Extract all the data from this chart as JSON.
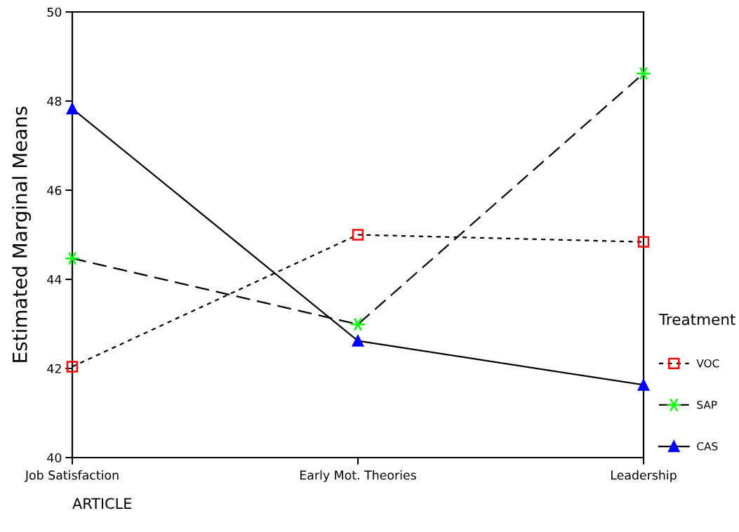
{
  "chart_data": {
    "type": "line",
    "xlabel": "ARTICLE",
    "ylabel": "Estimated Marginal Means",
    "legend_title": "Treatment",
    "categories": [
      "Job Satisfaction",
      "Early Mot. Theories",
      "Leadership"
    ],
    "series": [
      {
        "name": "VOC",
        "color": "#ff0000",
        "values": [
          42.04,
          45.0,
          44.84
        ],
        "marker": "square",
        "line_style": "dotted"
      },
      {
        "name": "SAP",
        "color": "#00ff00",
        "values": [
          44.47,
          42.99,
          48.62
        ],
        "marker": "cross",
        "line_style": "dashed"
      },
      {
        "name": "CAS",
        "color": "#0000ff",
        "values": [
          47.83,
          42.62,
          41.63
        ],
        "marker": "triangle",
        "line_style": "solid"
      }
    ],
    "ylim": [
      40,
      50
    ],
    "yticks": [
      40,
      42,
      44,
      46,
      48,
      50
    ],
    "grid": false,
    "legend": "bottom right"
  }
}
